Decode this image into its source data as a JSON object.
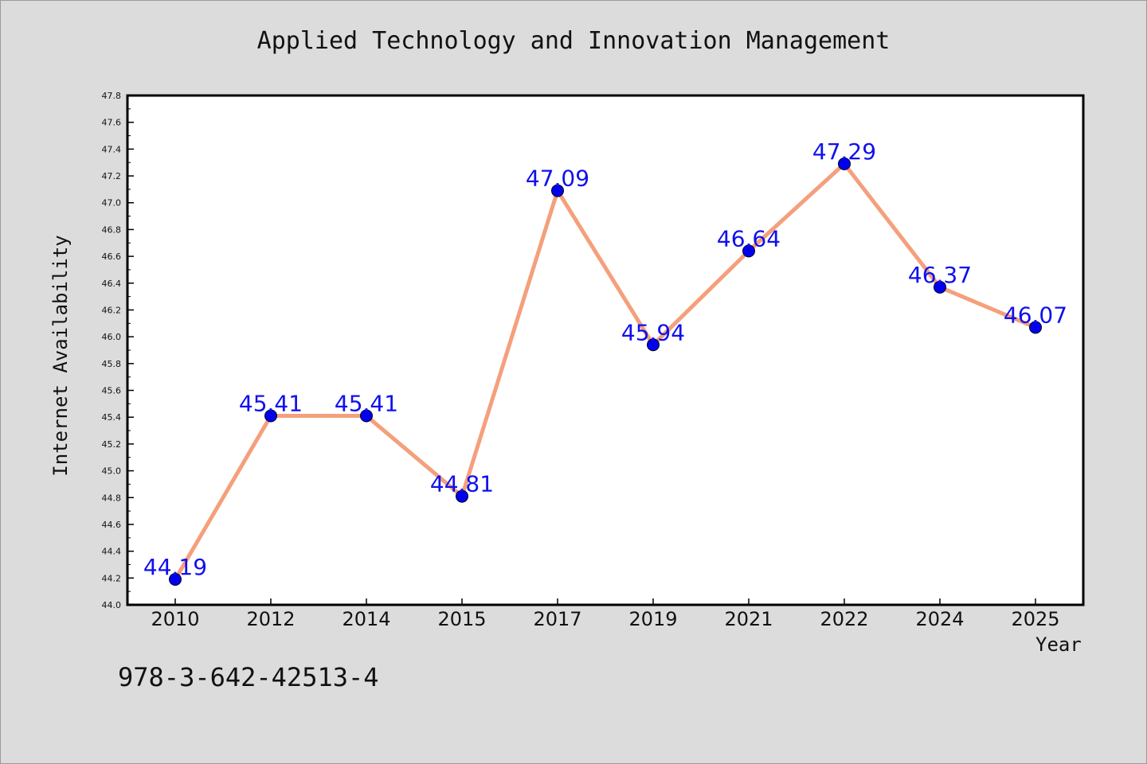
{
  "chart_data": {
    "type": "line",
    "title": "Applied Technology and Innovation Management",
    "xlabel": "Year",
    "ylabel": "Internet Availability",
    "categories": [
      "2010",
      "2012",
      "2014",
      "2015",
      "2017",
      "2019",
      "2021",
      "2022",
      "2024",
      "2025"
    ],
    "series": [
      {
        "values": [
          44.19,
          45.41,
          45.41,
          44.81,
          47.09,
          45.94,
          46.64,
          47.29,
          46.37,
          46.07
        ],
        "data_labels": [
          "44.19",
          "45.41",
          "45.41",
          "44.81",
          "47.09",
          "45.94",
          "46.64",
          "47.29",
          "46.37",
          "46.07"
        ]
      }
    ],
    "ylim": [
      44.0,
      47.8
    ],
    "y_ticks": [
      "44.0",
      "44.2",
      "44.4",
      "44.6",
      "44.8",
      "45.0",
      "45.2",
      "45.4",
      "45.6",
      "45.8",
      "46.0",
      "46.2",
      "46.4",
      "46.6",
      "46.8",
      "47.0",
      "47.2",
      "47.4",
      "47.6",
      "47.8"
    ],
    "grid": false,
    "legend": "none",
    "colors": {
      "line": "#f4a07c",
      "marker": "#0000ee",
      "data_label": "#1010ee",
      "background": "#dcdcdc",
      "plot_area": "#ffffff"
    }
  },
  "footer": {
    "isbn": "978-3-642-42513-4"
  }
}
